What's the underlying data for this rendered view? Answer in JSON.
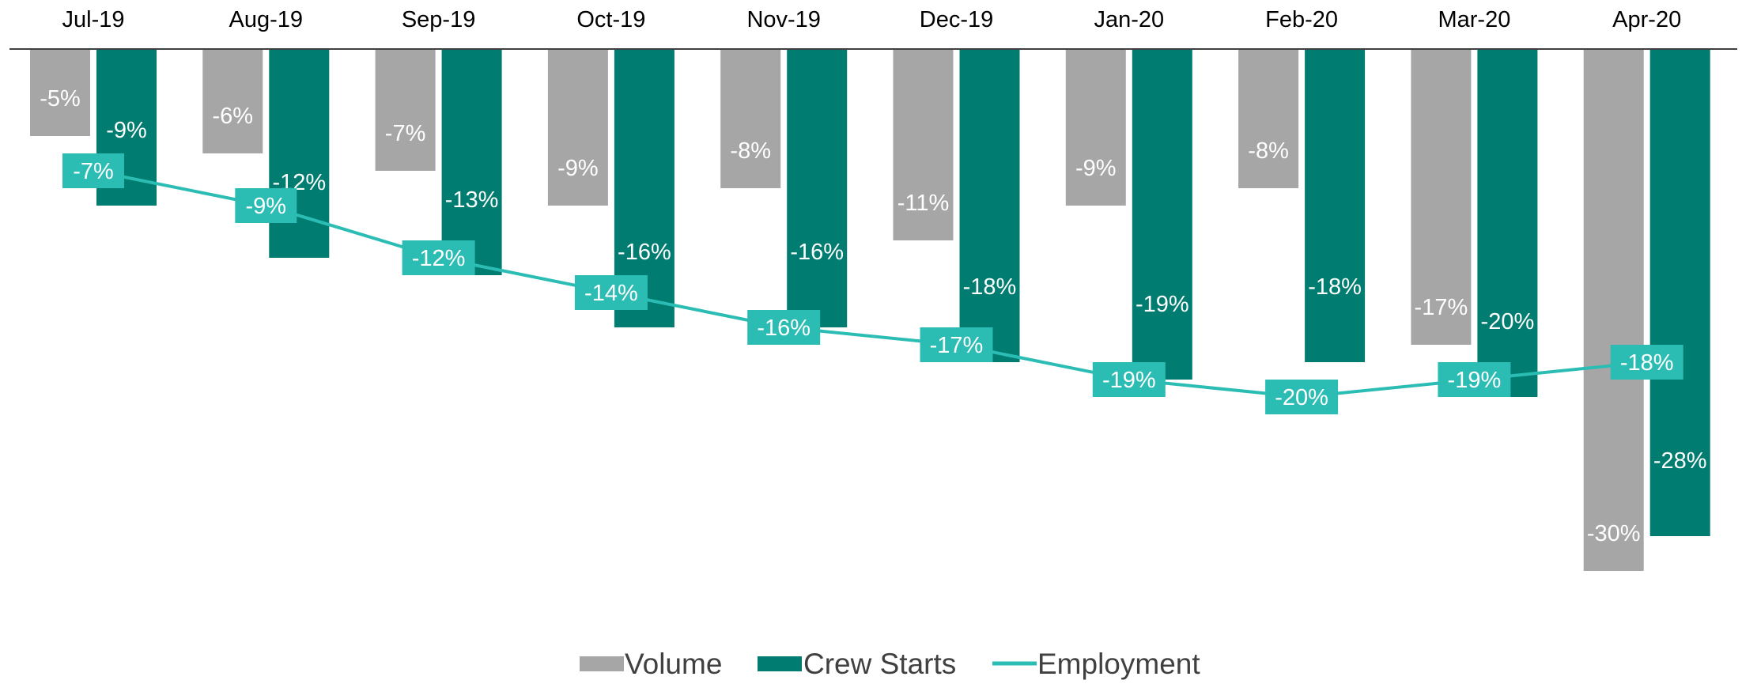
{
  "chart_data": {
    "type": "bar",
    "categories": [
      "Jul-19",
      "Aug-19",
      "Sep-19",
      "Oct-19",
      "Nov-19",
      "Dec-19",
      "Jan-20",
      "Feb-20",
      "Mar-20",
      "Apr-20"
    ],
    "series": [
      {
        "name": "Volume",
        "type": "bar",
        "color": "#a6a6a6",
        "values": [
          -5,
          -6,
          -7,
          -9,
          -8,
          -11,
          -9,
          -8,
          -17,
          -30
        ],
        "labels": [
          "-5%",
          "-6%",
          "-7%",
          "-9%",
          "-8%",
          "-11%",
          "-9%",
          "-8%",
          "-17%",
          "-30%"
        ]
      },
      {
        "name": "Crew Starts",
        "type": "bar",
        "color": "#007c70",
        "values": [
          -9,
          -12,
          -13,
          -16,
          -16,
          -18,
          -19,
          -18,
          -20,
          -28
        ],
        "labels": [
          "-9%",
          "-12%",
          "-13%",
          "-16%",
          "-16%",
          "-18%",
          "-19%",
          "-18%",
          "-20%",
          "-28%"
        ]
      },
      {
        "name": "Employment",
        "type": "line",
        "color": "#2bbdb4",
        "values": [
          -7,
          -9,
          -12,
          -14,
          -16,
          -17,
          -19,
          -20,
          -19,
          -18
        ],
        "labels": [
          "-7%",
          "-9%",
          "-12%",
          "-14%",
          "-16%",
          "-17%",
          "-19%",
          "-20%",
          "-19%",
          "-18%"
        ]
      }
    ],
    "ylim": [
      -35,
      0
    ],
    "grid": false,
    "category_axis_position": "top",
    "legend_position": "bottom-center",
    "legend": [
      "Volume",
      "Crew Starts",
      "Employment"
    ]
  }
}
